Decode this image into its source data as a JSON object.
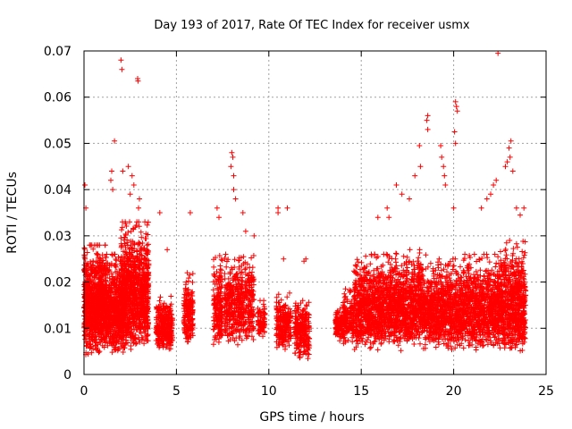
{
  "chart_data": {
    "type": "scatter",
    "title": "Day 193 of 2017, Rate Of TEC Index for receiver usmx",
    "xlabel": "GPS time / hours",
    "ylabel": "ROTI / TECUs",
    "xlim": [
      0,
      25
    ],
    "ylim": [
      0,
      0.07
    ],
    "xticks": [
      "0",
      "5",
      "10",
      "15",
      "20",
      "25"
    ],
    "yticks": [
      "0",
      "0.01",
      "0.02",
      "0.03",
      "0.04",
      "0.05",
      "0.06",
      "0.07"
    ],
    "grid": true,
    "legend": "none",
    "marker": "+",
    "color": "#ff0000",
    "clusters": [
      {
        "x": [
          0.0,
          1.2
        ],
        "y": [
          0.004,
          0.028
        ],
        "n": 900
      },
      {
        "x": [
          1.2,
          2.2
        ],
        "y": [
          0.004,
          0.026
        ],
        "n": 600
      },
      {
        "x": [
          2.0,
          3.5
        ],
        "y": [
          0.005,
          0.033
        ],
        "n": 950
      },
      {
        "x": [
          3.9,
          4.8
        ],
        "y": [
          0.005,
          0.017
        ],
        "n": 300
      },
      {
        "x": [
          5.4,
          5.9
        ],
        "y": [
          0.006,
          0.022
        ],
        "n": 180
      },
      {
        "x": [
          7.0,
          7.5
        ],
        "y": [
          0.005,
          0.027
        ],
        "n": 180
      },
      {
        "x": [
          7.6,
          9.2
        ],
        "y": [
          0.006,
          0.026
        ],
        "n": 500
      },
      {
        "x": [
          9.4,
          9.8
        ],
        "y": [
          0.008,
          0.016
        ],
        "n": 80
      },
      {
        "x": [
          10.4,
          11.2
        ],
        "y": [
          0.005,
          0.018
        ],
        "n": 220
      },
      {
        "x": [
          11.4,
          12.2
        ],
        "y": [
          0.003,
          0.017
        ],
        "n": 250
      },
      {
        "x": [
          13.6,
          14.0
        ],
        "y": [
          0.007,
          0.015
        ],
        "n": 100
      },
      {
        "x": [
          14.0,
          14.6
        ],
        "y": [
          0.006,
          0.019
        ],
        "n": 150
      },
      {
        "x": [
          14.6,
          16.5
        ],
        "y": [
          0.005,
          0.026
        ],
        "n": 800
      },
      {
        "x": [
          16.5,
          18.5
        ],
        "y": [
          0.005,
          0.027
        ],
        "n": 850
      },
      {
        "x": [
          18.5,
          20.5
        ],
        "y": [
          0.005,
          0.025
        ],
        "n": 800
      },
      {
        "x": [
          20.5,
          22.5
        ],
        "y": [
          0.005,
          0.026
        ],
        "n": 800
      },
      {
        "x": [
          22.5,
          23.9
        ],
        "y": [
          0.004,
          0.029
        ],
        "n": 700
      }
    ],
    "outliers": [
      {
        "x": 2.0,
        "y": 0.068
      },
      {
        "x": 2.05,
        "y": 0.066
      },
      {
        "x": 2.9,
        "y": 0.064
      },
      {
        "x": 2.92,
        "y": 0.0635
      },
      {
        "x": 1.65,
        "y": 0.0505
      },
      {
        "x": 2.4,
        "y": 0.045
      },
      {
        "x": 2.1,
        "y": 0.044
      },
      {
        "x": 1.5,
        "y": 0.044
      },
      {
        "x": 2.6,
        "y": 0.043
      },
      {
        "x": 2.7,
        "y": 0.041
      },
      {
        "x": 1.45,
        "y": 0.042
      },
      {
        "x": 1.55,
        "y": 0.04
      },
      {
        "x": 2.5,
        "y": 0.039
      },
      {
        "x": 0.05,
        "y": 0.041
      },
      {
        "x": 0.1,
        "y": 0.036
      },
      {
        "x": 3.0,
        "y": 0.038
      },
      {
        "x": 2.95,
        "y": 0.036
      },
      {
        "x": 4.1,
        "y": 0.035
      },
      {
        "x": 5.75,
        "y": 0.035
      },
      {
        "x": 4.5,
        "y": 0.027
      },
      {
        "x": 8.0,
        "y": 0.048
      },
      {
        "x": 8.05,
        "y": 0.047
      },
      {
        "x": 7.95,
        "y": 0.045
      },
      {
        "x": 8.1,
        "y": 0.043
      },
      {
        "x": 8.1,
        "y": 0.04
      },
      {
        "x": 8.2,
        "y": 0.038
      },
      {
        "x": 8.6,
        "y": 0.035
      },
      {
        "x": 7.2,
        "y": 0.036
      },
      {
        "x": 7.3,
        "y": 0.034
      },
      {
        "x": 8.75,
        "y": 0.031
      },
      {
        "x": 9.2,
        "y": 0.03
      },
      {
        "x": 10.5,
        "y": 0.036
      },
      {
        "x": 10.5,
        "y": 0.035
      },
      {
        "x": 11.0,
        "y": 0.036
      },
      {
        "x": 10.8,
        "y": 0.025
      },
      {
        "x": 11.9,
        "y": 0.0245
      },
      {
        "x": 12.0,
        "y": 0.025
      },
      {
        "x": 18.6,
        "y": 0.056
      },
      {
        "x": 18.55,
        "y": 0.055
      },
      {
        "x": 18.6,
        "y": 0.053
      },
      {
        "x": 20.1,
        "y": 0.059
      },
      {
        "x": 20.15,
        "y": 0.058
      },
      {
        "x": 20.2,
        "y": 0.057
      },
      {
        "x": 20.05,
        "y": 0.0525
      },
      {
        "x": 20.1,
        "y": 0.05
      },
      {
        "x": 19.3,
        "y": 0.0495
      },
      {
        "x": 19.35,
        "y": 0.047
      },
      {
        "x": 19.45,
        "y": 0.045
      },
      {
        "x": 19.5,
        "y": 0.043
      },
      {
        "x": 19.55,
        "y": 0.041
      },
      {
        "x": 18.15,
        "y": 0.0495
      },
      {
        "x": 18.2,
        "y": 0.045
      },
      {
        "x": 17.9,
        "y": 0.043
      },
      {
        "x": 16.9,
        "y": 0.041
      },
      {
        "x": 17.2,
        "y": 0.039
      },
      {
        "x": 17.6,
        "y": 0.038
      },
      {
        "x": 16.4,
        "y": 0.036
      },
      {
        "x": 16.5,
        "y": 0.034
      },
      {
        "x": 15.9,
        "y": 0.034
      },
      {
        "x": 20.0,
        "y": 0.036
      },
      {
        "x": 21.5,
        "y": 0.036
      },
      {
        "x": 21.8,
        "y": 0.038
      },
      {
        "x": 22.4,
        "y": 0.0695
      },
      {
        "x": 23.1,
        "y": 0.0505
      },
      {
        "x": 23.0,
        "y": 0.049
      },
      {
        "x": 23.05,
        "y": 0.047
      },
      {
        "x": 22.9,
        "y": 0.046
      },
      {
        "x": 22.8,
        "y": 0.045
      },
      {
        "x": 23.2,
        "y": 0.044
      },
      {
        "x": 22.3,
        "y": 0.042
      },
      {
        "x": 22.15,
        "y": 0.041
      },
      {
        "x": 22.0,
        "y": 0.039
      },
      {
        "x": 23.4,
        "y": 0.036
      },
      {
        "x": 23.6,
        "y": 0.0345
      },
      {
        "x": 23.8,
        "y": 0.036
      }
    ]
  }
}
